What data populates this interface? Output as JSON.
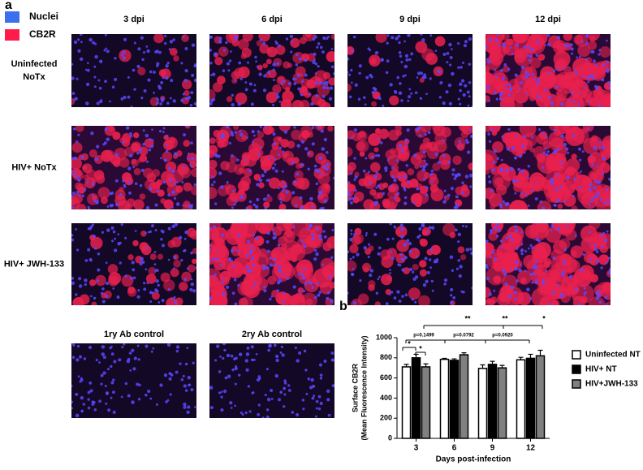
{
  "panel_a": {
    "label": "a",
    "legend": [
      {
        "name": "Nuclei",
        "color": "#3a6ff0"
      },
      {
        "name": "CB2R",
        "color": "#ff1c4a"
      }
    ],
    "columns": [
      "3 dpi",
      "6 dpi",
      "9 dpi",
      "12 dpi"
    ],
    "rows": [
      [
        "Uninfected",
        "NoTx"
      ],
      [
        "HIV+ NoTx"
      ],
      [
        "HIV+ JWH-133"
      ]
    ],
    "controls": [
      "1ry Ab control",
      "2ry Ab control"
    ]
  },
  "chart_data": {
    "type": "bar",
    "label": "b",
    "y_label": [
      "Surface CB2R",
      "(Mean Fluorescence Intensity)"
    ],
    "x_label": "Days post-infection",
    "categories": [
      "3",
      "6",
      "9",
      "12"
    ],
    "series": [
      {
        "name": "Uninfected NT",
        "color": "#ffffff",
        "values": [
          710,
          785,
          695,
          780
        ],
        "errors": [
          25,
          10,
          35,
          25
        ]
      },
      {
        "name": "HIV+ NT",
        "color": "#000000",
        "values": [
          800,
          775,
          735,
          795
        ],
        "errors": [
          35,
          15,
          30,
          40
        ]
      },
      {
        "name": "HIV+JWH-133",
        "color": "#808080",
        "values": [
          710,
          830,
          700,
          820
        ],
        "errors": [
          30,
          20,
          25,
          55
        ]
      }
    ],
    "ylim": [
      0,
      1000
    ],
    "yticks": [
      0,
      200,
      400,
      600,
      800,
      1000
    ],
    "annotations": [
      "**",
      "**",
      "*",
      "p=0.1499",
      "p=0.0792",
      "p=0.0920",
      "*",
      "*"
    ]
  }
}
